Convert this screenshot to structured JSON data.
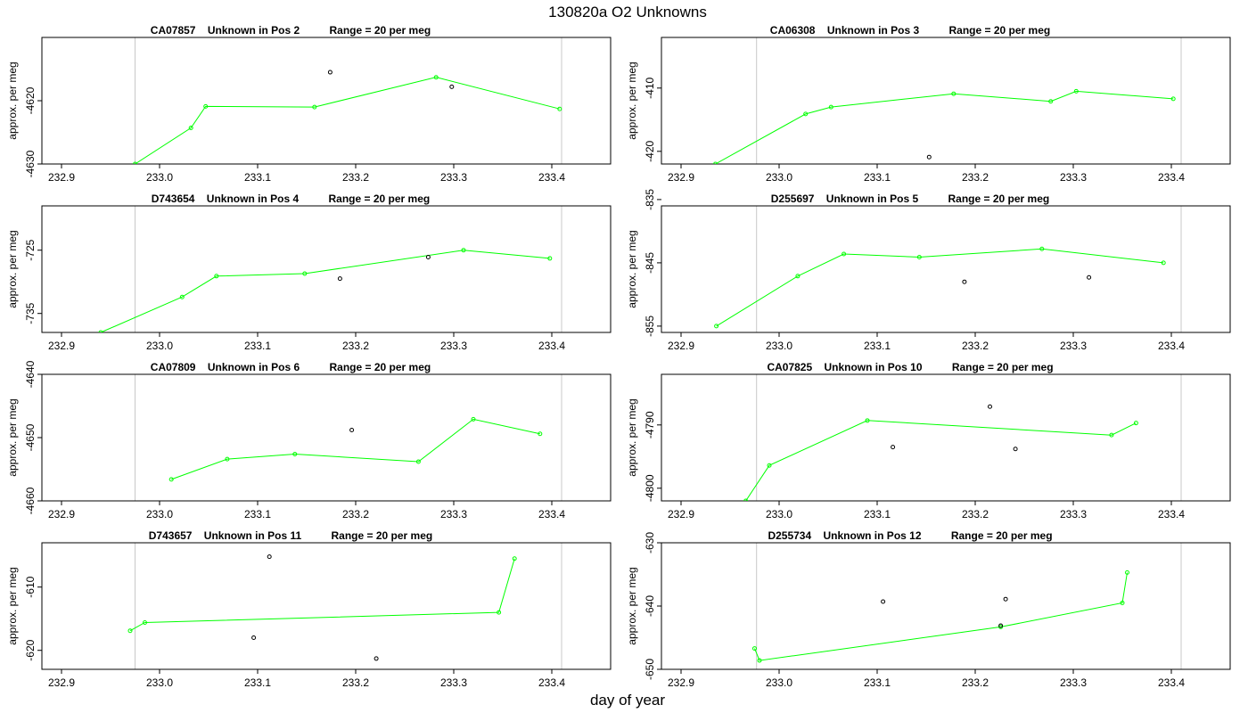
{
  "figure": {
    "title": "130820a  O2 Unknowns",
    "xlabel": "day of year"
  },
  "chart_data": [
    {
      "type": "line",
      "title": "CA07857    Unknown in Pos 2          Range = 20 per meg",
      "ylabel": "approx. per meg",
      "xlim": [
        232.88,
        233.46
      ],
      "ylim": [
        -4630,
        -4610
      ],
      "xticks": [
        "232.9",
        "233.0",
        "233.1",
        "233.2",
        "233.3",
        "233.4"
      ],
      "yticks": [
        "-4620",
        "-4630"
      ],
      "vlines": [
        232.975,
        233.41
      ],
      "series": [
        {
          "style": "line",
          "color": "#00ff00",
          "x": [
            232.975,
            233.032,
            233.047,
            233.158,
            233.282,
            233.408
          ],
          "y": [
            -4630.0,
            -4624.3,
            -4620.9,
            -4621.0,
            -4616.3,
            -4621.3
          ]
        },
        {
          "style": "points",
          "color": "#000000",
          "x": [
            233.174,
            233.298
          ],
          "y": [
            -4615.5,
            -4617.8
          ]
        }
      ]
    },
    {
      "type": "line",
      "title": "CA06308    Unknown in Pos 3          Range = 20 per meg",
      "ylabel": "approx. per meg",
      "xlim": [
        232.88,
        233.46
      ],
      "ylim": [
        -422,
        -402
      ],
      "xticks": [
        "232.9",
        "233.0",
        "233.1",
        "233.2",
        "233.3",
        "233.4"
      ],
      "yticks": [
        "-410",
        "-420"
      ],
      "vlines": [
        232.977,
        233.41
      ],
      "series": [
        {
          "style": "line",
          "color": "#00ff00",
          "x": [
            232.935,
            233.027,
            233.053,
            233.178,
            233.277,
            233.303,
            233.402
          ],
          "y": [
            -422.0,
            -414.1,
            -413.0,
            -410.9,
            -412.1,
            -410.5,
            -411.7
          ]
        },
        {
          "style": "points",
          "color": "#000000",
          "x": [
            233.153
          ],
          "y": [
            -420.9
          ]
        }
      ]
    },
    {
      "type": "line",
      "title": "D743654    Unknown in Pos 4          Range = 20 per meg",
      "ylabel": "approx. per meg",
      "xlim": [
        232.88,
        233.46
      ],
      "ylim": [
        -738,
        -718
      ],
      "xticks": [
        "232.9",
        "233.0",
        "233.1",
        "233.2",
        "233.3",
        "233.4"
      ],
      "yticks": [
        "-725",
        "-735"
      ],
      "vlines": [
        232.975,
        233.41
      ],
      "series": [
        {
          "style": "line",
          "color": "#00ff00",
          "x": [
            232.94,
            233.023,
            233.058,
            233.148,
            233.31,
            233.398
          ],
          "y": [
            -738.0,
            -732.4,
            -729.1,
            -728.7,
            -725.0,
            -726.3
          ]
        },
        {
          "style": "points",
          "color": "#000000",
          "x": [
            233.184,
            233.274
          ],
          "y": [
            -729.5,
            -726.1
          ]
        }
      ]
    },
    {
      "type": "line",
      "title": "D255697    Unknown in Pos 5          Range = 20 per meg",
      "ylabel": "approx. per meg",
      "xlim": [
        232.88,
        233.46
      ],
      "ylim": [
        -856,
        -836
      ],
      "xticks": [
        "232.9",
        "233.0",
        "233.1",
        "233.2",
        "233.3",
        "233.4"
      ],
      "yticks": [
        "-835",
        "-845",
        "-855"
      ],
      "vlines": [
        232.977,
        233.41
      ],
      "series": [
        {
          "style": "line",
          "color": "#00ff00",
          "x": [
            232.936,
            233.019,
            233.066,
            233.143,
            233.268,
            233.392
          ],
          "y": [
            -855.0,
            -847.1,
            -843.6,
            -844.1,
            -842.8,
            -845.0
          ]
        },
        {
          "style": "points",
          "color": "#000000",
          "x": [
            233.189,
            233.316
          ],
          "y": [
            -848.0,
            -847.3
          ]
        }
      ]
    },
    {
      "type": "line",
      "title": "CA07809    Unknown in Pos 6          Range = 20 per meg",
      "ylabel": "approx. per meg",
      "xlim": [
        232.88,
        233.46
      ],
      "ylim": [
        -4660,
        -4640
      ],
      "xticks": [
        "232.9",
        "233.0",
        "233.1",
        "233.2",
        "233.3",
        "233.4"
      ],
      "yticks": [
        "-4640",
        "-4650",
        "-4660"
      ],
      "vlines": [
        232.975,
        233.41
      ],
      "series": [
        {
          "style": "line",
          "color": "#00ff00",
          "x": [
            233.012,
            233.069,
            233.138,
            233.264,
            233.32,
            233.388
          ],
          "y": [
            -4656.6,
            -4653.4,
            -4652.6,
            -4653.8,
            -4647.1,
            -4649.4
          ]
        },
        {
          "style": "points",
          "color": "#000000",
          "x": [
            233.196
          ],
          "y": [
            -4648.8
          ]
        }
      ]
    },
    {
      "type": "line",
      "title": "CA07825    Unknown in Pos 10          Range = 20 per meg",
      "ylabel": "approx. per meg",
      "xlim": [
        232.88,
        233.46
      ],
      "ylim": [
        -4802,
        -4782
      ],
      "xticks": [
        "232.9",
        "233.0",
        "233.1",
        "233.2",
        "233.3",
        "233.4"
      ],
      "yticks": [
        "-4790",
        "-4800"
      ],
      "vlines": [
        232.977,
        233.41
      ],
      "series": [
        {
          "style": "line",
          "color": "#00ff00",
          "x": [
            232.966,
            232.99,
            233.09,
            233.339,
            233.364
          ],
          "y": [
            -4802.0,
            -4796.4,
            -4789.3,
            -4791.6,
            -4789.7
          ]
        },
        {
          "style": "points",
          "color": "#000000",
          "x": [
            233.116,
            233.215,
            233.241
          ],
          "y": [
            -4793.5,
            -4787.1,
            -4793.8
          ]
        }
      ]
    },
    {
      "type": "line",
      "title": "D743657    Unknown in Pos 11          Range = 20 per meg",
      "ylabel": "approx. per meg",
      "xlim": [
        232.88,
        233.46
      ],
      "ylim": [
        -623,
        -603
      ],
      "xticks": [
        "232.9",
        "233.0",
        "233.1",
        "233.2",
        "233.3",
        "233.4"
      ],
      "yticks": [
        "-610",
        "-620"
      ],
      "vlines": [
        232.975,
        233.41
      ],
      "series": [
        {
          "style": "line",
          "color": "#00ff00",
          "x": [
            232.97,
            232.985,
            233.346,
            233.362
          ],
          "y": [
            -616.9,
            -615.6,
            -614.0,
            -605.5
          ]
        },
        {
          "style": "points",
          "color": "#000000",
          "x": [
            233.112,
            233.096,
            233.221
          ],
          "y": [
            -605.2,
            -618.0,
            -621.3
          ]
        }
      ]
    },
    {
      "type": "line",
      "title": "D255734    Unknown in Pos 12          Range = 20 per meg",
      "ylabel": "approx. per meg",
      "xlim": [
        232.88,
        233.46
      ],
      "ylim": [
        -650,
        -630
      ],
      "xticks": [
        "232.9",
        "233.0",
        "233.1",
        "233.2",
        "233.3",
        "233.4"
      ],
      "yticks": [
        "-630",
        "-640",
        "-650"
      ],
      "vlines": [
        232.977,
        233.41
      ],
      "series": [
        {
          "style": "line",
          "color": "#00ff00",
          "x": [
            232.975,
            232.98,
            233.226,
            233.35,
            233.355
          ],
          "y": [
            -646.7,
            -648.6,
            -643.3,
            -639.5,
            -634.7
          ]
        },
        {
          "style": "points",
          "color": "#000000",
          "x": [
            233.106,
            233.231,
            233.226
          ],
          "y": [
            -639.3,
            -638.9,
            -643.1
          ]
        }
      ]
    }
  ]
}
